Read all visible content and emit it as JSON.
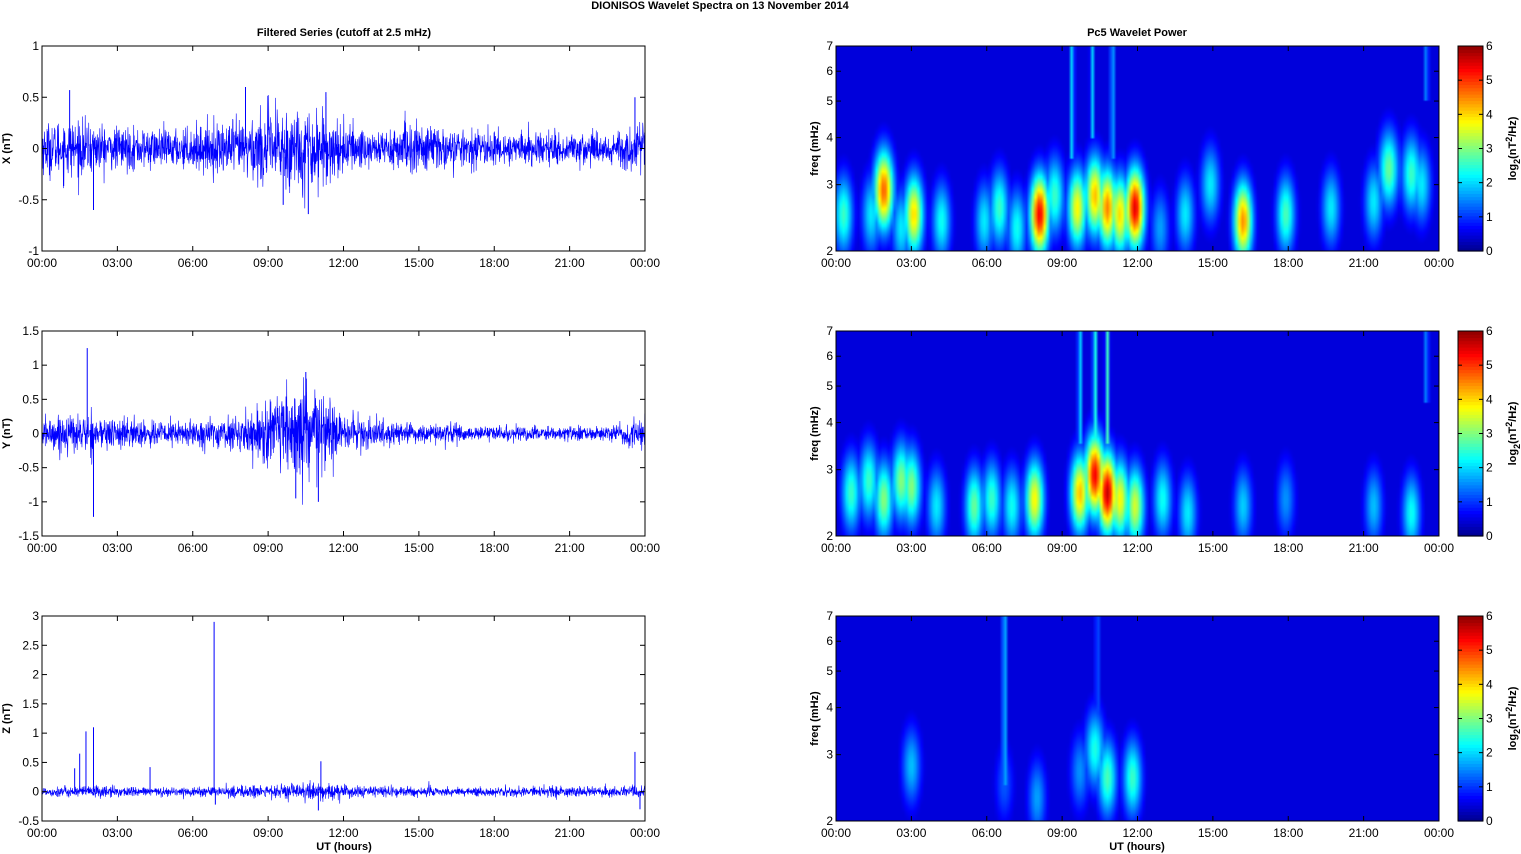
{
  "figure": {
    "title": "DIONISOS Wavelet Spectra on 13 November  2014",
    "left_column_title": "Filtered Series (cutoff at 2.5 mHz)",
    "right_column_title": "Pc5 Wavelet Power",
    "xlabel": "UT (hours)"
  },
  "chart_data": [
    {
      "type": "line",
      "panel": "X",
      "ylabel": "X (nT)",
      "color": "#0000ff",
      "xlim": [
        0,
        24
      ],
      "ylim": [
        -1,
        1
      ],
      "x_ticks": [
        "00:00",
        "03:00",
        "06:00",
        "09:00",
        "12:00",
        "15:00",
        "18:00",
        "21:00",
        "00:00"
      ],
      "y_ticks": [
        "-1",
        "-0.5",
        "0",
        "0.5",
        "1"
      ],
      "y_tick_values": [
        -1,
        -0.5,
        0,
        0.5,
        1
      ],
      "envelope": {
        "hours": [
          0,
          1,
          2,
          3,
          4,
          5,
          6,
          7,
          8,
          9,
          10,
          11,
          12,
          13,
          14,
          15,
          16,
          17,
          18,
          19,
          20,
          21,
          22,
          23,
          24
        ],
        "amplitude": [
          0.22,
          0.25,
          0.22,
          0.18,
          0.18,
          0.16,
          0.18,
          0.22,
          0.25,
          0.35,
          0.38,
          0.35,
          0.22,
          0.18,
          0.18,
          0.25,
          0.18,
          0.14,
          0.15,
          0.14,
          0.14,
          0.14,
          0.15,
          0.16,
          0.22
        ]
      },
      "spikes": [
        {
          "hour": 1.1,
          "value": 0.57
        },
        {
          "hour": 2.05,
          "value": -0.6
        },
        {
          "hour": 8.1,
          "value": 0.6
        },
        {
          "hour": 9.6,
          "value": -0.55
        },
        {
          "hour": 10.6,
          "value": -0.64
        },
        {
          "hour": 11.3,
          "value": 0.55
        },
        {
          "hour": 23.6,
          "value": 0.5
        }
      ]
    },
    {
      "type": "line",
      "panel": "Y",
      "ylabel": "Y (nT)",
      "color": "#0000ff",
      "xlim": [
        0,
        24
      ],
      "ylim": [
        -1.5,
        1.5
      ],
      "x_ticks": [
        "00:00",
        "03:00",
        "06:00",
        "09:00",
        "12:00",
        "15:00",
        "18:00",
        "21:00",
        "00:00"
      ],
      "y_ticks": [
        "-1.5",
        "-1",
        "-0.5",
        "0",
        "0.5",
        "1",
        "1.5"
      ],
      "y_tick_values": [
        -1.5,
        -1,
        -0.5,
        0,
        0.5,
        1,
        1.5
      ],
      "envelope": {
        "hours": [
          0,
          1,
          2,
          3,
          4,
          5,
          6,
          7,
          8,
          9,
          10,
          11,
          12,
          13,
          14,
          15,
          16,
          17,
          18,
          19,
          20,
          21,
          22,
          23,
          24
        ],
        "amplitude": [
          0.2,
          0.25,
          0.25,
          0.2,
          0.18,
          0.18,
          0.16,
          0.2,
          0.2,
          0.45,
          0.6,
          0.6,
          0.25,
          0.2,
          0.15,
          0.12,
          0.12,
          0.1,
          0.1,
          0.1,
          0.1,
          0.1,
          0.1,
          0.12,
          0.2
        ]
      },
      "spikes": [
        {
          "hour": 1.8,
          "value": 1.25
        },
        {
          "hour": 2.05,
          "value": -1.22
        },
        {
          "hour": 10.5,
          "value": 0.9
        },
        {
          "hour": 10.1,
          "value": -0.95
        },
        {
          "hour": 11.0,
          "value": -1.0
        }
      ]
    },
    {
      "type": "line",
      "panel": "Z",
      "ylabel": "Z (nT)",
      "color": "#0000ff",
      "xlim": [
        0,
        24
      ],
      "ylim": [
        -0.5,
        3
      ],
      "x_ticks": [
        "00:00",
        "03:00",
        "06:00",
        "09:00",
        "12:00",
        "15:00",
        "18:00",
        "21:00",
        "00:00"
      ],
      "y_ticks": [
        "-0.5",
        "0",
        "0.5",
        "1",
        "1.5",
        "2",
        "2.5",
        "3"
      ],
      "y_tick_values": [
        -0.5,
        0,
        0.5,
        1,
        1.5,
        2,
        2.5,
        3
      ],
      "envelope": {
        "hours": [
          0,
          1,
          2,
          3,
          4,
          5,
          6,
          7,
          8,
          9,
          10,
          11,
          12,
          13,
          14,
          15,
          16,
          17,
          18,
          19,
          20,
          21,
          22,
          23,
          24
        ],
        "amplitude": [
          0.08,
          0.08,
          0.1,
          0.08,
          0.07,
          0.07,
          0.07,
          0.08,
          0.1,
          0.1,
          0.12,
          0.15,
          0.1,
          0.08,
          0.08,
          0.08,
          0.08,
          0.07,
          0.07,
          0.07,
          0.08,
          0.08,
          0.08,
          0.08,
          0.1
        ]
      },
      "spikes": [
        {
          "hour": 1.3,
          "value": 0.4
        },
        {
          "hour": 1.5,
          "value": 0.65
        },
        {
          "hour": 1.75,
          "value": 1.03
        },
        {
          "hour": 2.05,
          "value": 1.1
        },
        {
          "hour": 4.3,
          "value": 0.42
        },
        {
          "hour": 6.85,
          "value": 2.9
        },
        {
          "hour": 6.9,
          "value": -0.22
        },
        {
          "hour": 11.1,
          "value": 0.52
        },
        {
          "hour": 11.0,
          "value": -0.32
        },
        {
          "hour": 23.6,
          "value": 0.68
        },
        {
          "hour": 23.8,
          "value": -0.3
        }
      ]
    },
    {
      "type": "heatmap",
      "panel": "X",
      "title": "Pc5 Wavelet Power",
      "ylabel": "freq (mHz)",
      "xlim": [
        0,
        24
      ],
      "ylim": [
        2,
        7
      ],
      "y_scale": "log",
      "x_ticks": [
        "00:00",
        "03:00",
        "06:00",
        "09:00",
        "12:00",
        "15:00",
        "18:00",
        "21:00",
        "00:00"
      ],
      "y_ticks": [
        "2",
        "3",
        "4",
        "5",
        "6",
        "7"
      ],
      "y_tick_values": [
        2,
        3,
        4,
        5,
        6,
        7
      ],
      "colorbar": {
        "label": "log2(nT2/Hz)",
        "ticks": [
          0,
          1,
          2,
          3,
          4,
          5,
          6
        ],
        "range": [
          0,
          6
        ],
        "colormap": "jet"
      },
      "blobs": [
        {
          "hour": 0.3,
          "freq": 2.5,
          "power": 2.5
        },
        {
          "hour": 1.4,
          "freq": 2.5,
          "power": 2.0
        },
        {
          "hour": 1.9,
          "freq": 2.9,
          "power": 4.8
        },
        {
          "hour": 2.6,
          "freq": 2.3,
          "power": 2.0
        },
        {
          "hour": 3.1,
          "freq": 2.5,
          "power": 4.0
        },
        {
          "hour": 4.2,
          "freq": 2.4,
          "power": 2.2
        },
        {
          "hour": 5.9,
          "freq": 2.4,
          "power": 2.0
        },
        {
          "hour": 6.5,
          "freq": 2.6,
          "power": 2.5
        },
        {
          "hour": 7.2,
          "freq": 2.3,
          "power": 2.2
        },
        {
          "hour": 8.1,
          "freq": 2.5,
          "power": 5.5
        },
        {
          "hour": 8.7,
          "freq": 2.8,
          "power": 2.5
        },
        {
          "hour": 9.6,
          "freq": 2.6,
          "power": 3.8
        },
        {
          "hour": 10.3,
          "freq": 2.8,
          "power": 4.2
        },
        {
          "hour": 10.8,
          "freq": 2.6,
          "power": 4.6
        },
        {
          "hour": 11.3,
          "freq": 2.5,
          "power": 4.0
        },
        {
          "hour": 11.9,
          "freq": 2.6,
          "power": 5.6
        },
        {
          "hour": 12.9,
          "freq": 2.3,
          "power": 1.5
        },
        {
          "hour": 13.9,
          "freq": 2.5,
          "power": 2.0
        },
        {
          "hour": 14.9,
          "freq": 3.0,
          "power": 2.0
        },
        {
          "hour": 16.2,
          "freq": 2.4,
          "power": 4.5
        },
        {
          "hour": 17.9,
          "freq": 2.5,
          "power": 2.6
        },
        {
          "hour": 19.7,
          "freq": 2.6,
          "power": 2.0
        },
        {
          "hour": 21.4,
          "freq": 2.7,
          "power": 2.0
        },
        {
          "hour": 22.0,
          "freq": 3.3,
          "power": 2.8
        },
        {
          "hour": 22.9,
          "freq": 3.2,
          "power": 2.5
        },
        {
          "hour": 23.3,
          "freq": 3.0,
          "power": 2.0
        }
      ],
      "streaks": [
        {
          "hour": 9.4,
          "freq_low": 3.5,
          "power": 2.0
        },
        {
          "hour": 10.2,
          "freq_low": 4.0,
          "power": 1.8
        },
        {
          "hour": 11.0,
          "freq_low": 3.5,
          "power": 1.8
        },
        {
          "hour": 23.5,
          "freq_low": 5.0,
          "power": 1.5
        }
      ]
    },
    {
      "type": "heatmap",
      "panel": "Y",
      "ylabel": "freq (mHz)",
      "xlim": [
        0,
        24
      ],
      "ylim": [
        2,
        7
      ],
      "y_scale": "log",
      "x_ticks": [
        "00:00",
        "03:00",
        "06:00",
        "09:00",
        "12:00",
        "15:00",
        "18:00",
        "21:00",
        "00:00"
      ],
      "y_ticks": [
        "2",
        "3",
        "4",
        "5",
        "6",
        "7"
      ],
      "y_tick_values": [
        2,
        3,
        4,
        5,
        6,
        7
      ],
      "colorbar": {
        "label": "log2(nT2/Hz)",
        "ticks": [
          0,
          1,
          2,
          3,
          4,
          5,
          6
        ],
        "range": [
          0,
          6
        ],
        "colormap": "jet"
      },
      "blobs": [
        {
          "hour": 0.6,
          "freq": 2.6,
          "power": 2.5
        },
        {
          "hour": 1.3,
          "freq": 2.8,
          "power": 2.5
        },
        {
          "hour": 1.9,
          "freq": 2.5,
          "power": 3.0
        },
        {
          "hour": 2.6,
          "freq": 2.8,
          "power": 3.0
        },
        {
          "hour": 3.0,
          "freq": 2.7,
          "power": 3.0
        },
        {
          "hour": 4.0,
          "freq": 2.4,
          "power": 2.0
        },
        {
          "hour": 5.5,
          "freq": 2.4,
          "power": 2.8
        },
        {
          "hour": 6.2,
          "freq": 2.5,
          "power": 2.5
        },
        {
          "hour": 7.0,
          "freq": 2.4,
          "power": 2.2
        },
        {
          "hour": 7.9,
          "freq": 2.5,
          "power": 3.8
        },
        {
          "hour": 9.7,
          "freq": 2.6,
          "power": 4.2
        },
        {
          "hour": 10.3,
          "freq": 2.9,
          "power": 5.5
        },
        {
          "hour": 10.8,
          "freq": 2.6,
          "power": 5.8
        },
        {
          "hour": 11.3,
          "freq": 2.5,
          "power": 3.8
        },
        {
          "hour": 11.9,
          "freq": 2.4,
          "power": 3.5
        },
        {
          "hour": 13.0,
          "freq": 2.5,
          "power": 2.2
        },
        {
          "hour": 14.0,
          "freq": 2.3,
          "power": 2.0
        },
        {
          "hour": 16.2,
          "freq": 2.4,
          "power": 1.8
        },
        {
          "hour": 17.9,
          "freq": 2.5,
          "power": 1.4
        },
        {
          "hour": 21.4,
          "freq": 2.4,
          "power": 1.7
        },
        {
          "hour": 22.9,
          "freq": 2.3,
          "power": 2.2
        }
      ],
      "streaks": [
        {
          "hour": 9.7,
          "freq_low": 3.5,
          "power": 2.0
        },
        {
          "hour": 10.3,
          "freq_low": 3.5,
          "power": 2.5
        },
        {
          "hour": 10.8,
          "freq_low": 3.5,
          "power": 2.5
        },
        {
          "hour": 23.5,
          "freq_low": 4.5,
          "power": 1.5
        }
      ]
    },
    {
      "type": "heatmap",
      "panel": "Z",
      "ylabel": "freq (mHz)",
      "xlim": [
        0,
        24
      ],
      "ylim": [
        2,
        7
      ],
      "y_scale": "log",
      "x_ticks": [
        "00:00",
        "03:00",
        "06:00",
        "09:00",
        "12:00",
        "15:00",
        "18:00",
        "21:00",
        "00:00"
      ],
      "y_ticks": [
        "2",
        "3",
        "4",
        "5",
        "6",
        "7"
      ],
      "y_tick_values": [
        2,
        3,
        4,
        5,
        6,
        7
      ],
      "colorbar": {
        "label": "log2(nT2/Hz)",
        "ticks": [
          0,
          1,
          2,
          3,
          4,
          5,
          6
        ],
        "range": [
          0,
          6
        ],
        "colormap": "jet"
      },
      "blobs": [
        {
          "hour": 3.0,
          "freq": 2.8,
          "power": 1.7
        },
        {
          "hour": 6.7,
          "freq": 2.5,
          "power": 1.0
        },
        {
          "hour": 8.0,
          "freq": 2.3,
          "power": 1.5
        },
        {
          "hour": 9.7,
          "freq": 2.7,
          "power": 1.4
        },
        {
          "hour": 10.3,
          "freq": 3.1,
          "power": 2.3
        },
        {
          "hour": 10.8,
          "freq": 2.6,
          "power": 2.6
        },
        {
          "hour": 11.8,
          "freq": 2.6,
          "power": 2.5
        }
      ],
      "streaks": [
        {
          "hour": 6.7,
          "freq_low": 2.5,
          "power": 2.0
        },
        {
          "hour": 10.4,
          "freq_low": 3.3,
          "power": 1.2
        }
      ]
    }
  ]
}
